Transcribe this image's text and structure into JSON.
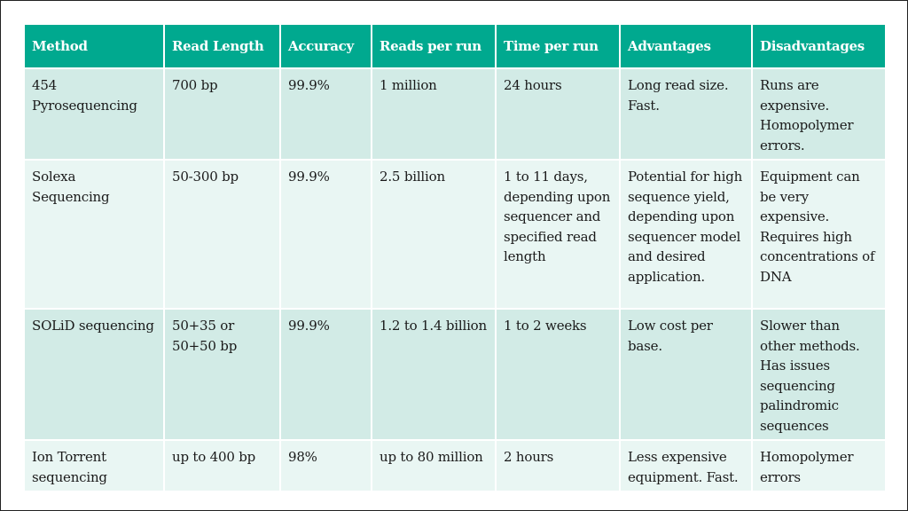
{
  "table": {
    "headers": [
      "Method",
      "Read Length",
      "Accuracy",
      "Reads per run",
      "Time per run",
      "Advantages",
      "Disadvantages"
    ],
    "rows": [
      [
        "454 Pyrosequencing",
        "700 bp",
        "99.9%",
        "1 million",
        "24 hours",
        "Long read size. Fast.",
        "Runs are expensive. Homopolymer errors."
      ],
      [
        "Solexa Sequencing",
        "50-300 bp",
        "99.9%",
        "2.5 billion",
        "1 to 11 days, depending upon sequencer and specified read length",
        "Potential for high sequence yield, depending upon sequencer model and desired application.",
        "Equipment can be very expensive. Requires high concentrations of DNA"
      ],
      [
        "SOLiD sequencing",
        "50+35 or 50+50 bp",
        "99.9%",
        "1.2 to 1.4 billion",
        "1 to 2 weeks",
        "Low cost per base.",
        "Slower than other methods. Has issues sequencing palindromic sequences"
      ],
      [
        "Ion Torrent sequencing",
        "up to 400 bp",
        "98%",
        "up to 80 million",
        "2 hours",
        "Less expensive equipment. Fast.",
        "Homopolymer errors"
      ]
    ]
  },
  "colors": {
    "header_bg": "#00a98f",
    "row_dark": "#d2ebe6",
    "row_light": "#e9f6f3"
  }
}
